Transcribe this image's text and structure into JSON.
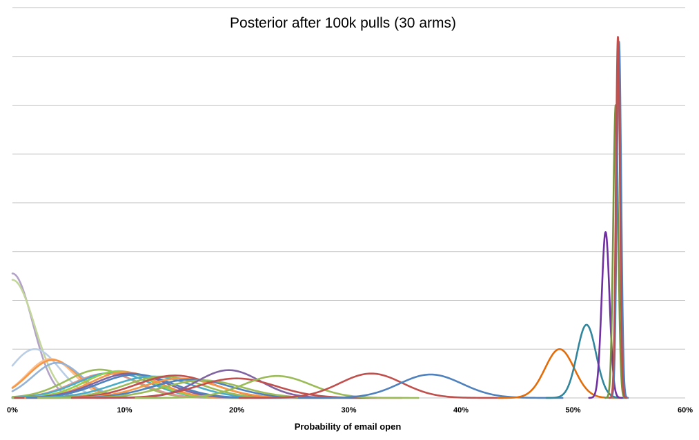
{
  "chart_data": {
    "type": "line",
    "title": "Posterior after 100k pulls (30 arms)",
    "xlabel": "Probability of email open",
    "ylabel": "",
    "x_ticks": [
      "0%",
      "10%",
      "20%",
      "30%",
      "40%",
      "50%",
      "60%"
    ],
    "xlim": [
      0,
      0.6
    ],
    "ylim": [
      0,
      8
    ],
    "y_gridlines": [
      1,
      2,
      3,
      4,
      5,
      6,
      7,
      8
    ],
    "grid": true,
    "legend": "none",
    "series": [
      {
        "peak_x": 0.0,
        "peak_y": 2.55,
        "width": 0.018,
        "color": "#b3a2c7"
      },
      {
        "peak_x": 0.0,
        "peak_y": 2.42,
        "width": 0.02,
        "color": "#c3d69b"
      },
      {
        "peak_x": 0.02,
        "peak_y": 1.0,
        "width": 0.022,
        "color": "#b9cde5"
      },
      {
        "peak_x": 0.034,
        "peak_y": 0.8,
        "width": 0.021,
        "color": "#fac090"
      },
      {
        "peak_x": 0.036,
        "peak_y": 0.78,
        "width": 0.022,
        "color": "#f79646"
      },
      {
        "peak_x": 0.04,
        "peak_y": 0.72,
        "width": 0.022,
        "color": "#95b3d7"
      },
      {
        "peak_x": 0.078,
        "peak_y": 0.58,
        "width": 0.03,
        "color": "#9bbb59"
      },
      {
        "peak_x": 0.084,
        "peak_y": 0.5,
        "width": 0.03,
        "color": "#d99694"
      },
      {
        "peak_x": 0.09,
        "peak_y": 0.52,
        "width": 0.032,
        "color": "#4bacc6"
      },
      {
        "peak_x": 0.095,
        "peak_y": 0.55,
        "width": 0.03,
        "color": "#92d050"
      },
      {
        "peak_x": 0.1,
        "peak_y": 0.53,
        "width": 0.03,
        "color": "#f79646"
      },
      {
        "peak_x": 0.105,
        "peak_y": 0.5,
        "width": 0.032,
        "color": "#8064a2"
      },
      {
        "peak_x": 0.11,
        "peak_y": 0.48,
        "width": 0.033,
        "color": "#4f81bd"
      },
      {
        "peak_x": 0.125,
        "peak_y": 0.44,
        "width": 0.035,
        "color": "#4bacc6"
      },
      {
        "peak_x": 0.135,
        "peak_y": 0.44,
        "width": 0.034,
        "color": "#9bbb59"
      },
      {
        "peak_x": 0.145,
        "peak_y": 0.46,
        "width": 0.034,
        "color": "#c0504d"
      },
      {
        "peak_x": 0.15,
        "peak_y": 0.4,
        "width": 0.033,
        "color": "#f79646"
      },
      {
        "peak_x": 0.16,
        "peak_y": 0.38,
        "width": 0.035,
        "color": "#4f81bd"
      },
      {
        "peak_x": 0.17,
        "peak_y": 0.36,
        "width": 0.035,
        "color": "#9bbb59"
      },
      {
        "peak_x": 0.193,
        "peak_y": 0.57,
        "width": 0.028,
        "color": "#8064a2"
      },
      {
        "peak_x": 0.2,
        "peak_y": 0.4,
        "width": 0.035,
        "color": "#c0504d"
      },
      {
        "peak_x": 0.236,
        "peak_y": 0.45,
        "width": 0.03,
        "color": "#9bbb59"
      },
      {
        "peak_x": 0.32,
        "peak_y": 0.5,
        "width": 0.028,
        "color": "#c0504d"
      },
      {
        "peak_x": 0.373,
        "peak_y": 0.48,
        "width": 0.028,
        "color": "#4f81bd"
      },
      {
        "peak_x": 0.488,
        "peak_y": 1.0,
        "width": 0.013,
        "color": "#e36c09"
      },
      {
        "peak_x": 0.512,
        "peak_y": 1.5,
        "width": 0.0085,
        "color": "#31859c"
      },
      {
        "peak_x": 0.529,
        "peak_y": 3.4,
        "width": 0.0035,
        "color": "#7030a0"
      },
      {
        "peak_x": 0.538,
        "peak_y": 6.0,
        "width": 0.0022,
        "color": "#77933c"
      },
      {
        "peak_x": 0.541,
        "peak_y": 7.3,
        "width": 0.0019,
        "color": "#4f81bd"
      },
      {
        "peak_x": 0.54,
        "peak_y": 7.4,
        "width": 0.0018,
        "color": "#c0504d"
      }
    ]
  }
}
